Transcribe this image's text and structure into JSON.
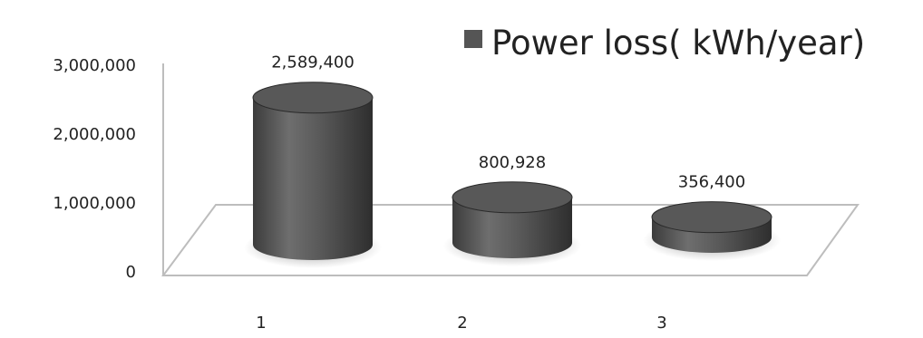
{
  "chart_data": {
    "type": "bar",
    "style": "3d-cylinder",
    "categories": [
      "1",
      "2",
      "3"
    ],
    "series": [
      {
        "name": "Power loss( kWh/year)",
        "values": [
          2589400,
          800928,
          356400
        ]
      }
    ],
    "data_labels": [
      "2,589,400",
      "800,928",
      "356,400"
    ],
    "yticks": [
      "0",
      "1,000,000",
      "2,000,000",
      "3,000,000"
    ],
    "ylim": [
      0,
      3000000
    ],
    "legend_position": "top-right",
    "grid": false,
    "colors": {
      "bar": "#555555",
      "floor": "#bbbbbb"
    }
  }
}
